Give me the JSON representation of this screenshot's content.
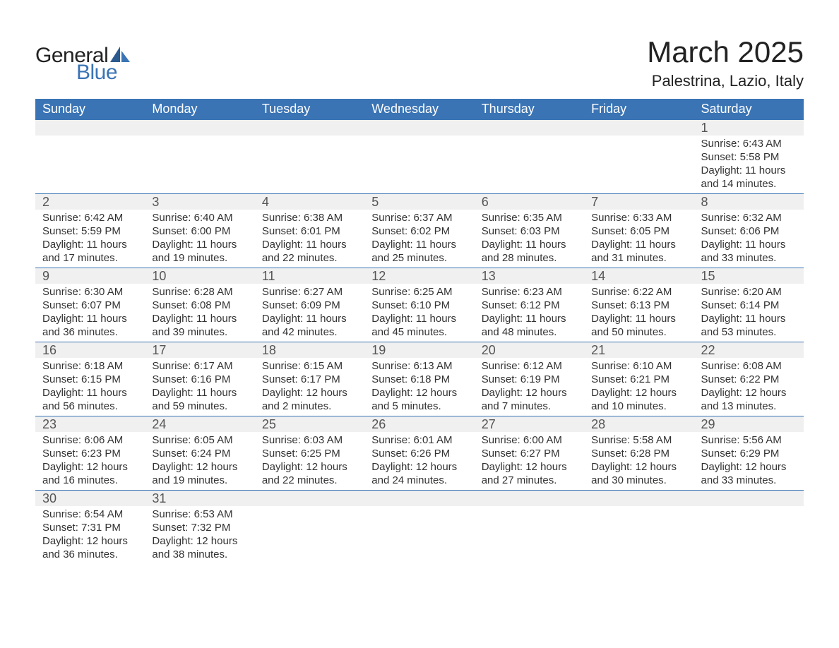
{
  "brand": {
    "text_general": "General",
    "text_blue": "Blue",
    "logo_color_dark": "#222222",
    "logo_color_blue": "#3a74b5"
  },
  "header": {
    "month_title": "March 2025",
    "location": "Palestrina, Lazio, Italy"
  },
  "style": {
    "header_bg": "#3a74b5",
    "header_text": "#ffffff",
    "daynum_bg": "#f0f0f0",
    "border_color": "#3a74b5",
    "body_text": "#333333",
    "header_fontsize": 18,
    "daynum_fontsize": 18,
    "data_fontsize": 15
  },
  "weekdays": [
    "Sunday",
    "Monday",
    "Tuesday",
    "Wednesday",
    "Thursday",
    "Friday",
    "Saturday"
  ],
  "weeks": [
    [
      null,
      null,
      null,
      null,
      null,
      null,
      {
        "n": "1",
        "sunrise": "Sunrise: 6:43 AM",
        "sunset": "Sunset: 5:58 PM",
        "daylight": "Daylight: 11 hours and 14 minutes."
      }
    ],
    [
      {
        "n": "2",
        "sunrise": "Sunrise: 6:42 AM",
        "sunset": "Sunset: 5:59 PM",
        "daylight": "Daylight: 11 hours and 17 minutes."
      },
      {
        "n": "3",
        "sunrise": "Sunrise: 6:40 AM",
        "sunset": "Sunset: 6:00 PM",
        "daylight": "Daylight: 11 hours and 19 minutes."
      },
      {
        "n": "4",
        "sunrise": "Sunrise: 6:38 AM",
        "sunset": "Sunset: 6:01 PM",
        "daylight": "Daylight: 11 hours and 22 minutes."
      },
      {
        "n": "5",
        "sunrise": "Sunrise: 6:37 AM",
        "sunset": "Sunset: 6:02 PM",
        "daylight": "Daylight: 11 hours and 25 minutes."
      },
      {
        "n": "6",
        "sunrise": "Sunrise: 6:35 AM",
        "sunset": "Sunset: 6:03 PM",
        "daylight": "Daylight: 11 hours and 28 minutes."
      },
      {
        "n": "7",
        "sunrise": "Sunrise: 6:33 AM",
        "sunset": "Sunset: 6:05 PM",
        "daylight": "Daylight: 11 hours and 31 minutes."
      },
      {
        "n": "8",
        "sunrise": "Sunrise: 6:32 AM",
        "sunset": "Sunset: 6:06 PM",
        "daylight": "Daylight: 11 hours and 33 minutes."
      }
    ],
    [
      {
        "n": "9",
        "sunrise": "Sunrise: 6:30 AM",
        "sunset": "Sunset: 6:07 PM",
        "daylight": "Daylight: 11 hours and 36 minutes."
      },
      {
        "n": "10",
        "sunrise": "Sunrise: 6:28 AM",
        "sunset": "Sunset: 6:08 PM",
        "daylight": "Daylight: 11 hours and 39 minutes."
      },
      {
        "n": "11",
        "sunrise": "Sunrise: 6:27 AM",
        "sunset": "Sunset: 6:09 PM",
        "daylight": "Daylight: 11 hours and 42 minutes."
      },
      {
        "n": "12",
        "sunrise": "Sunrise: 6:25 AM",
        "sunset": "Sunset: 6:10 PM",
        "daylight": "Daylight: 11 hours and 45 minutes."
      },
      {
        "n": "13",
        "sunrise": "Sunrise: 6:23 AM",
        "sunset": "Sunset: 6:12 PM",
        "daylight": "Daylight: 11 hours and 48 minutes."
      },
      {
        "n": "14",
        "sunrise": "Sunrise: 6:22 AM",
        "sunset": "Sunset: 6:13 PM",
        "daylight": "Daylight: 11 hours and 50 minutes."
      },
      {
        "n": "15",
        "sunrise": "Sunrise: 6:20 AM",
        "sunset": "Sunset: 6:14 PM",
        "daylight": "Daylight: 11 hours and 53 minutes."
      }
    ],
    [
      {
        "n": "16",
        "sunrise": "Sunrise: 6:18 AM",
        "sunset": "Sunset: 6:15 PM",
        "daylight": "Daylight: 11 hours and 56 minutes."
      },
      {
        "n": "17",
        "sunrise": "Sunrise: 6:17 AM",
        "sunset": "Sunset: 6:16 PM",
        "daylight": "Daylight: 11 hours and 59 minutes."
      },
      {
        "n": "18",
        "sunrise": "Sunrise: 6:15 AM",
        "sunset": "Sunset: 6:17 PM",
        "daylight": "Daylight: 12 hours and 2 minutes."
      },
      {
        "n": "19",
        "sunrise": "Sunrise: 6:13 AM",
        "sunset": "Sunset: 6:18 PM",
        "daylight": "Daylight: 12 hours and 5 minutes."
      },
      {
        "n": "20",
        "sunrise": "Sunrise: 6:12 AM",
        "sunset": "Sunset: 6:19 PM",
        "daylight": "Daylight: 12 hours and 7 minutes."
      },
      {
        "n": "21",
        "sunrise": "Sunrise: 6:10 AM",
        "sunset": "Sunset: 6:21 PM",
        "daylight": "Daylight: 12 hours and 10 minutes."
      },
      {
        "n": "22",
        "sunrise": "Sunrise: 6:08 AM",
        "sunset": "Sunset: 6:22 PM",
        "daylight": "Daylight: 12 hours and 13 minutes."
      }
    ],
    [
      {
        "n": "23",
        "sunrise": "Sunrise: 6:06 AM",
        "sunset": "Sunset: 6:23 PM",
        "daylight": "Daylight: 12 hours and 16 minutes."
      },
      {
        "n": "24",
        "sunrise": "Sunrise: 6:05 AM",
        "sunset": "Sunset: 6:24 PM",
        "daylight": "Daylight: 12 hours and 19 minutes."
      },
      {
        "n": "25",
        "sunrise": "Sunrise: 6:03 AM",
        "sunset": "Sunset: 6:25 PM",
        "daylight": "Daylight: 12 hours and 22 minutes."
      },
      {
        "n": "26",
        "sunrise": "Sunrise: 6:01 AM",
        "sunset": "Sunset: 6:26 PM",
        "daylight": "Daylight: 12 hours and 24 minutes."
      },
      {
        "n": "27",
        "sunrise": "Sunrise: 6:00 AM",
        "sunset": "Sunset: 6:27 PM",
        "daylight": "Daylight: 12 hours and 27 minutes."
      },
      {
        "n": "28",
        "sunrise": "Sunrise: 5:58 AM",
        "sunset": "Sunset: 6:28 PM",
        "daylight": "Daylight: 12 hours and 30 minutes."
      },
      {
        "n": "29",
        "sunrise": "Sunrise: 5:56 AM",
        "sunset": "Sunset: 6:29 PM",
        "daylight": "Daylight: 12 hours and 33 minutes."
      }
    ],
    [
      {
        "n": "30",
        "sunrise": "Sunrise: 6:54 AM",
        "sunset": "Sunset: 7:31 PM",
        "daylight": "Daylight: 12 hours and 36 minutes."
      },
      {
        "n": "31",
        "sunrise": "Sunrise: 6:53 AM",
        "sunset": "Sunset: 7:32 PM",
        "daylight": "Daylight: 12 hours and 38 minutes."
      },
      null,
      null,
      null,
      null,
      null
    ]
  ]
}
